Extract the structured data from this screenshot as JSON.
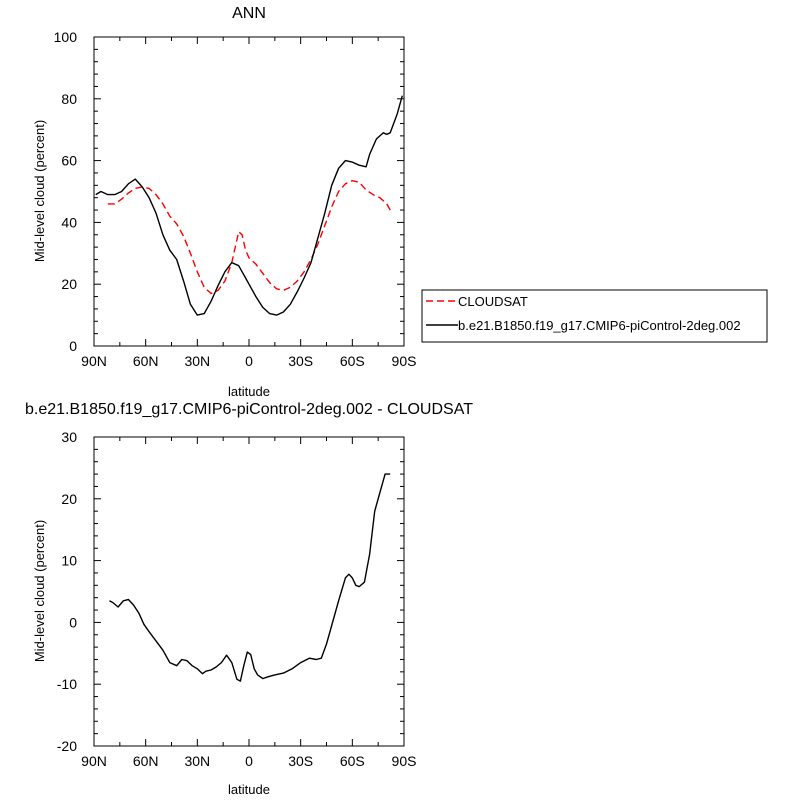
{
  "chart_data": [
    {
      "type": "line",
      "title": "ANN",
      "xlabel": "latitude",
      "ylabel": "Mid-level cloud (percent)",
      "xlim": [
        90,
        -90
      ],
      "ylim": [
        0,
        100
      ],
      "xticks": [
        90,
        60,
        30,
        0,
        -30,
        -60,
        -90
      ],
      "xtick_labels": [
        "90N",
        "60N",
        "30N",
        "0",
        "30S",
        "60S",
        "90S"
      ],
      "yticks": [
        0,
        20,
        40,
        60,
        80,
        100
      ],
      "ytick_labels": [
        "0",
        "20",
        "40",
        "60",
        "80",
        "100"
      ],
      "legend_position": "right",
      "series": [
        {
          "name": "CLOUDSAT",
          "color": "#ff0000",
          "dash": "dashed",
          "x": [
            82,
            78,
            74,
            70,
            66,
            62,
            58,
            54,
            50,
            46,
            42,
            38,
            34,
            30,
            26,
            22,
            18,
            14,
            10,
            6,
            4,
            2,
            0,
            -4,
            -8,
            -12,
            -16,
            -20,
            -24,
            -28,
            -32,
            -36,
            -40,
            -44,
            -48,
            -52,
            -56,
            -60,
            -64,
            -68,
            -72,
            -76,
            -80,
            -82
          ],
          "y": [
            46,
            46,
            47.5,
            49.5,
            51,
            51.5,
            51,
            49,
            46,
            42,
            39.5,
            35.5,
            30,
            24,
            19,
            17,
            18,
            21,
            27,
            37,
            36,
            31,
            28.5,
            26.5,
            23.5,
            20.5,
            18.5,
            18,
            19,
            21,
            24,
            28,
            33,
            39,
            45,
            50,
            52.5,
            53.5,
            53,
            50.5,
            49,
            48,
            46,
            44
          ]
        },
        {
          "name": "b.e21.B1850.f19_g17.CMIP6-piControl-2deg.002",
          "color": "#000000",
          "dash": "solid",
          "x": [
            89,
            86,
            82,
            78,
            74,
            70,
            66,
            62,
            58,
            54,
            50,
            46,
            42,
            38,
            34,
            30,
            26,
            22,
            18,
            14,
            10,
            6,
            4,
            2,
            0,
            -4,
            -8,
            -12,
            -16,
            -20,
            -24,
            -28,
            -32,
            -36,
            -40,
            -44,
            -48,
            -52,
            -56,
            -60,
            -64,
            -68,
            -70,
            -74,
            -78,
            -80,
            -82,
            -86,
            -89
          ],
          "y": [
            49,
            50,
            49,
            49,
            50,
            52.5,
            54,
            51.5,
            48,
            43,
            36,
            31,
            28,
            21,
            13.5,
            10,
            10.5,
            14.5,
            19.5,
            24,
            27,
            26,
            24,
            22,
            20,
            16,
            12.5,
            10.5,
            10,
            11,
            13.5,
            17.5,
            22,
            27,
            35,
            43,
            52,
            57.5,
            60,
            59.5,
            58.5,
            58,
            62,
            67,
            69,
            68.5,
            69,
            75,
            81
          ]
        }
      ]
    },
    {
      "type": "line",
      "title": "b.e21.B1850.f19_g17.CMIP6-piControl-2deg.002 - CLOUDSAT",
      "xlabel": "latitude",
      "ylabel": "Mid-level cloud (percent)",
      "xlim": [
        90,
        -90
      ],
      "ylim": [
        -20,
        30
      ],
      "xticks": [
        90,
        60,
        30,
        0,
        -30,
        -60,
        -90
      ],
      "xtick_labels": [
        "90N",
        "60N",
        "30N",
        "0",
        "30S",
        "60S",
        "90S"
      ],
      "yticks": [
        -20,
        -10,
        0,
        10,
        20,
        30
      ],
      "ytick_labels": [
        "-20",
        "-10",
        "0",
        "10",
        "20",
        "30"
      ],
      "series": [
        {
          "color": "#000000",
          "dash": "solid",
          "x": [
            81,
            79,
            76,
            73,
            70,
            67,
            64,
            61,
            58,
            54,
            50,
            46,
            42,
            39,
            36,
            33,
            30,
            27,
            25,
            22,
            19,
            16,
            13,
            10,
            7,
            5,
            3,
            1,
            -1,
            -3,
            -5,
            -8,
            -11,
            -15,
            -20,
            -25,
            -30,
            -35,
            -39,
            -42,
            -45,
            -48,
            -52,
            -56,
            -58,
            -60,
            -62,
            -64,
            -67,
            -70,
            -73,
            -76,
            -79,
            -82
          ],
          "y": [
            3.5,
            3.2,
            2.5,
            3.5,
            3.7,
            2.8,
            1.5,
            -0.3,
            -1.5,
            -3,
            -4.5,
            -6.5,
            -7,
            -6,
            -6.2,
            -7,
            -7.5,
            -8.3,
            -7.9,
            -7.7,
            -7.2,
            -6.5,
            -5.3,
            -6.5,
            -9.2,
            -9.5,
            -7,
            -4.8,
            -5.2,
            -7.5,
            -8.5,
            -9.1,
            -8.8,
            -8.5,
            -8.2,
            -7.5,
            -6.5,
            -5.8,
            -6,
            -5.8,
            -3.5,
            -0.5,
            3.5,
            7.2,
            7.8,
            7.2,
            6,
            5.8,
            6.5,
            11,
            18,
            21,
            24,
            24
          ]
        }
      ]
    }
  ]
}
